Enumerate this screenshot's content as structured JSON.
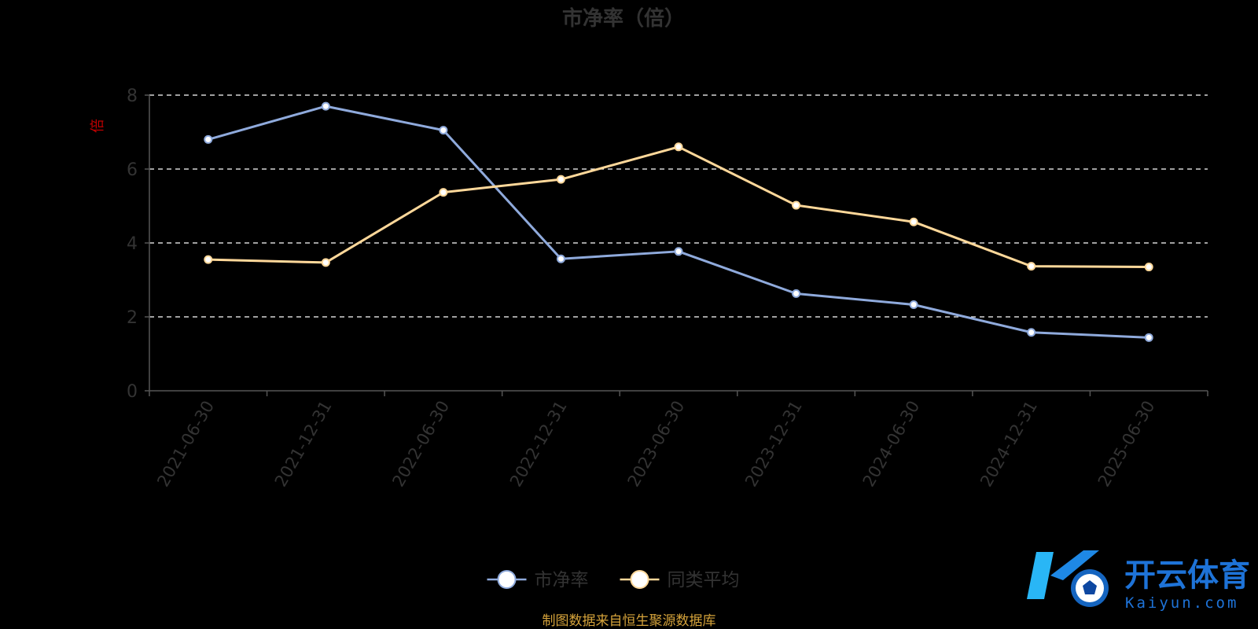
{
  "chart_data": {
    "type": "line",
    "title": "市净率（倍）",
    "ylabel": "倍",
    "ylim": [
      0,
      8
    ],
    "yticks": [
      0,
      2,
      4,
      6,
      8
    ],
    "grid": true,
    "legend_position": "bottom-center",
    "categories": [
      "2021-06-30",
      "2021-12-31",
      "2022-06-30",
      "2022-12-31",
      "2023-06-30",
      "2023-12-31",
      "2024-06-30",
      "2024-12-31",
      "2025-06-30"
    ],
    "series": [
      {
        "name": "市净率",
        "color": "#8faadc",
        "values": [
          6.8,
          7.7,
          7.05,
          3.57,
          3.77,
          2.63,
          2.33,
          1.58,
          1.44
        ]
      },
      {
        "name": "同类平均",
        "color": "#ffd89a",
        "values": [
          3.55,
          3.47,
          5.37,
          5.72,
          6.6,
          5.02,
          4.57,
          3.37,
          3.35
        ]
      }
    ]
  },
  "source_note": "制图数据来自恒生聚源数据库",
  "watermark": {
    "brand_cn": "开云体育",
    "brand_en": "Kaiyun.com",
    "logo_letter": "K"
  },
  "colors": {
    "background": "#000000",
    "grid": "#ffffff",
    "axis": "#555555",
    "text": "#333333",
    "unit": "#c00000",
    "source": "#d4a23a",
    "watermark": "#1e73d8"
  }
}
